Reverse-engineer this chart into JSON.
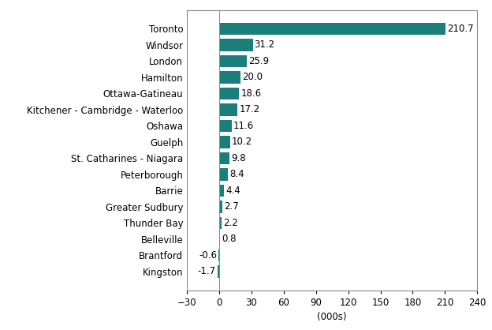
{
  "categories": [
    "Kingston",
    "Brantford",
    "Belleville",
    "Thunder Bay",
    "Greater Sudbury",
    "Barrie",
    "Peterborough",
    "St. Catharines - Niagara",
    "Guelph",
    "Oshawa",
    "Kitchener - Cambridge - Waterloo",
    "Ottawa-Gatineau",
    "Hamilton",
    "London",
    "Windsor",
    "Toronto"
  ],
  "values": [
    -1.7,
    -0.6,
    0.8,
    2.2,
    2.7,
    4.4,
    8.4,
    9.8,
    10.2,
    11.6,
    17.2,
    18.6,
    20.0,
    25.9,
    31.2,
    210.7
  ],
  "bar_color": "#1a7f7a",
  "xlabel": "(000s)",
  "xlim": [
    -30,
    240
  ],
  "xticks": [
    -30,
    0,
    30,
    60,
    90,
    120,
    150,
    180,
    210,
    240
  ],
  "label_fontsize": 8.5,
  "tick_fontsize": 8.5,
  "bar_height": 0.75
}
